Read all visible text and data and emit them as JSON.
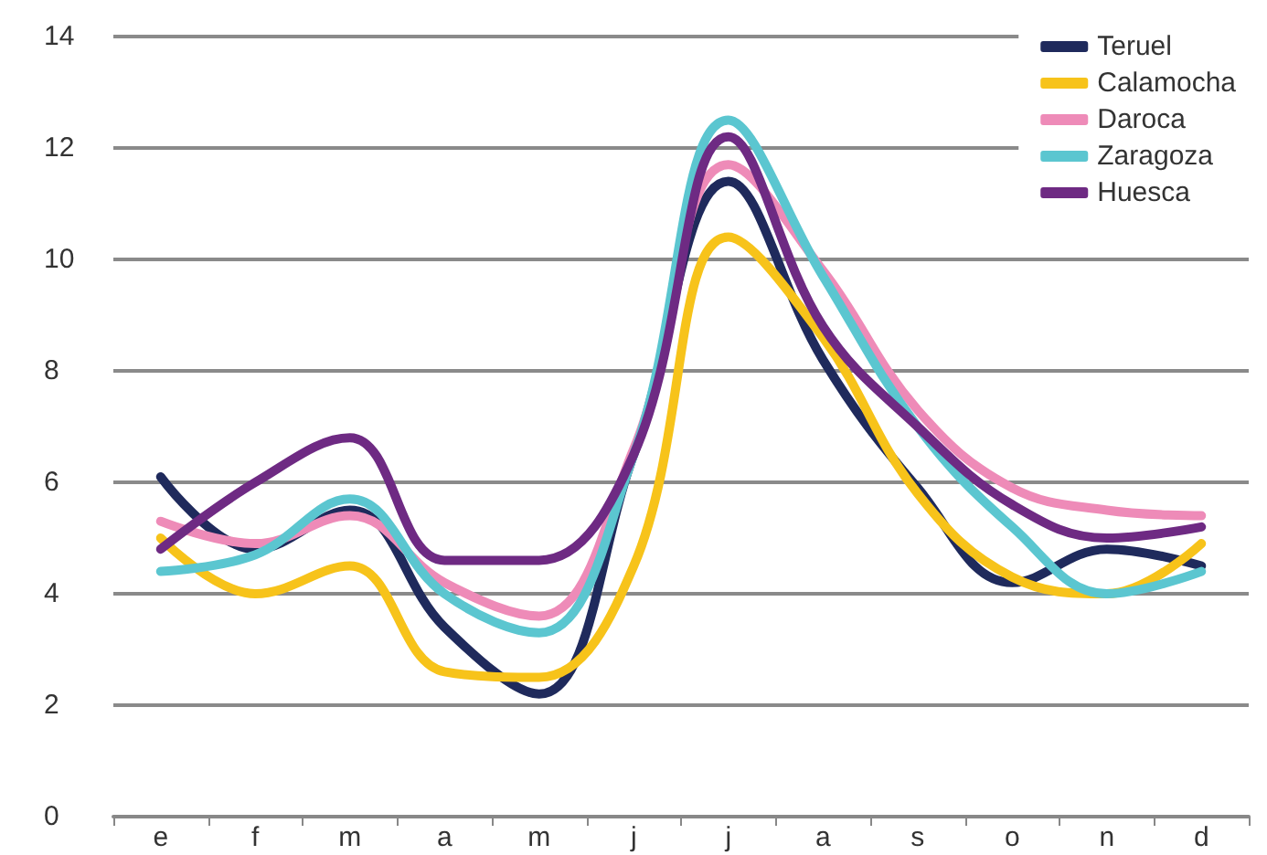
{
  "chart_data": {
    "type": "line",
    "categories": [
      "e",
      "f",
      "m",
      "a",
      "m",
      "j",
      "j",
      "a",
      "s",
      "o",
      "n",
      "d"
    ],
    "series": [
      {
        "name": "Teruel",
        "color": "#1f2a5c",
        "values": [
          6.1,
          4.8,
          5.5,
          3.4,
          2.2,
          6.5,
          11.4,
          8.2,
          5.9,
          4.2,
          4.8,
          4.5
        ]
      },
      {
        "name": "Calamocha",
        "color": "#f7c31a",
        "values": [
          5.0,
          4.0,
          4.5,
          2.6,
          2.5,
          4.5,
          10.4,
          8.6,
          5.8,
          4.3,
          4.0,
          4.9
        ]
      },
      {
        "name": "Daroca",
        "color": "#ee8bb8",
        "values": [
          5.3,
          4.9,
          5.4,
          4.2,
          3.6,
          6.6,
          11.7,
          9.8,
          7.3,
          5.9,
          5.5,
          5.4
        ]
      },
      {
        "name": "Zaragoza",
        "color": "#5bc6d0",
        "values": [
          4.4,
          4.7,
          5.7,
          4.0,
          3.3,
          6.5,
          12.5,
          9.7,
          7.0,
          5.2,
          4.0,
          4.4
        ]
      },
      {
        "name": "Huesca",
        "color": "#6e2a83",
        "values": [
          4.8,
          6.0,
          6.8,
          4.6,
          4.6,
          6.5,
          12.2,
          8.8,
          7.0,
          5.6,
          5.0,
          5.2
        ]
      }
    ],
    "ylim": [
      0,
      14
    ],
    "yticks": [
      0,
      2,
      4,
      6,
      8,
      10,
      12,
      14
    ],
    "grid": "y",
    "legend": "top right",
    "marker": "none",
    "line_style": "solid"
  }
}
